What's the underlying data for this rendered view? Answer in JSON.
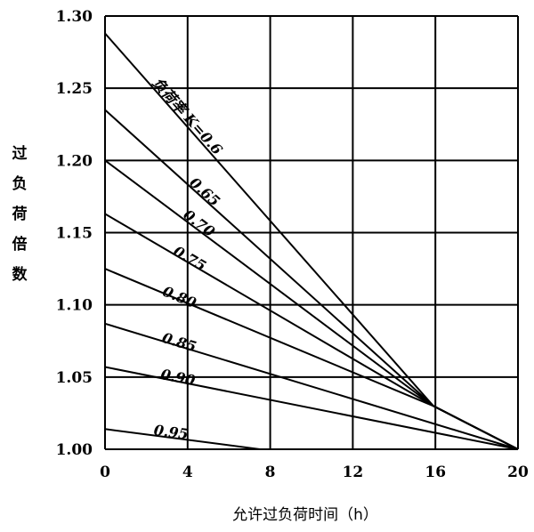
{
  "chart_data": {
    "type": "line",
    "title": "",
    "xlabel": "允许过负荷时间（h）",
    "ylabel": "过负荷倍数",
    "xlim": [
      0,
      20
    ],
    "ylim": [
      1.0,
      1.3
    ],
    "x_ticks": [
      "0",
      "4",
      "8",
      "12",
      "16",
      "20"
    ],
    "y_ticks": [
      "1.00",
      "1.05",
      "1.10",
      "1.15",
      "1.20",
      "1.25",
      "1.30"
    ],
    "grid": true,
    "series": [
      {
        "name": "负荷率 K=0.6",
        "points": [
          [
            0,
            1.288
          ],
          [
            15.9,
            1.03
          ],
          [
            20,
            1.0
          ]
        ]
      },
      {
        "name": "0.65",
        "points": [
          [
            0,
            1.235
          ],
          [
            15.9,
            1.03
          ],
          [
            20,
            1.0
          ]
        ]
      },
      {
        "name": "0.70",
        "points": [
          [
            0,
            1.2
          ],
          [
            15.9,
            1.03
          ],
          [
            20,
            1.0
          ]
        ]
      },
      {
        "name": "0.75",
        "points": [
          [
            0,
            1.163
          ],
          [
            15.9,
            1.03
          ],
          [
            20,
            1.0
          ]
        ]
      },
      {
        "name": "0.80",
        "points": [
          [
            0,
            1.125
          ],
          [
            15.9,
            1.03
          ],
          [
            20,
            1.0
          ]
        ]
      },
      {
        "name": "0.85",
        "points": [
          [
            0,
            1.087
          ],
          [
            20,
            1.0
          ]
        ]
      },
      {
        "name": "0.90",
        "points": [
          [
            0,
            1.057
          ],
          [
            20,
            1.0
          ]
        ]
      },
      {
        "name": "0.95",
        "points": [
          [
            0,
            1.014
          ],
          [
            7.5,
            1.0
          ]
        ]
      }
    ]
  }
}
